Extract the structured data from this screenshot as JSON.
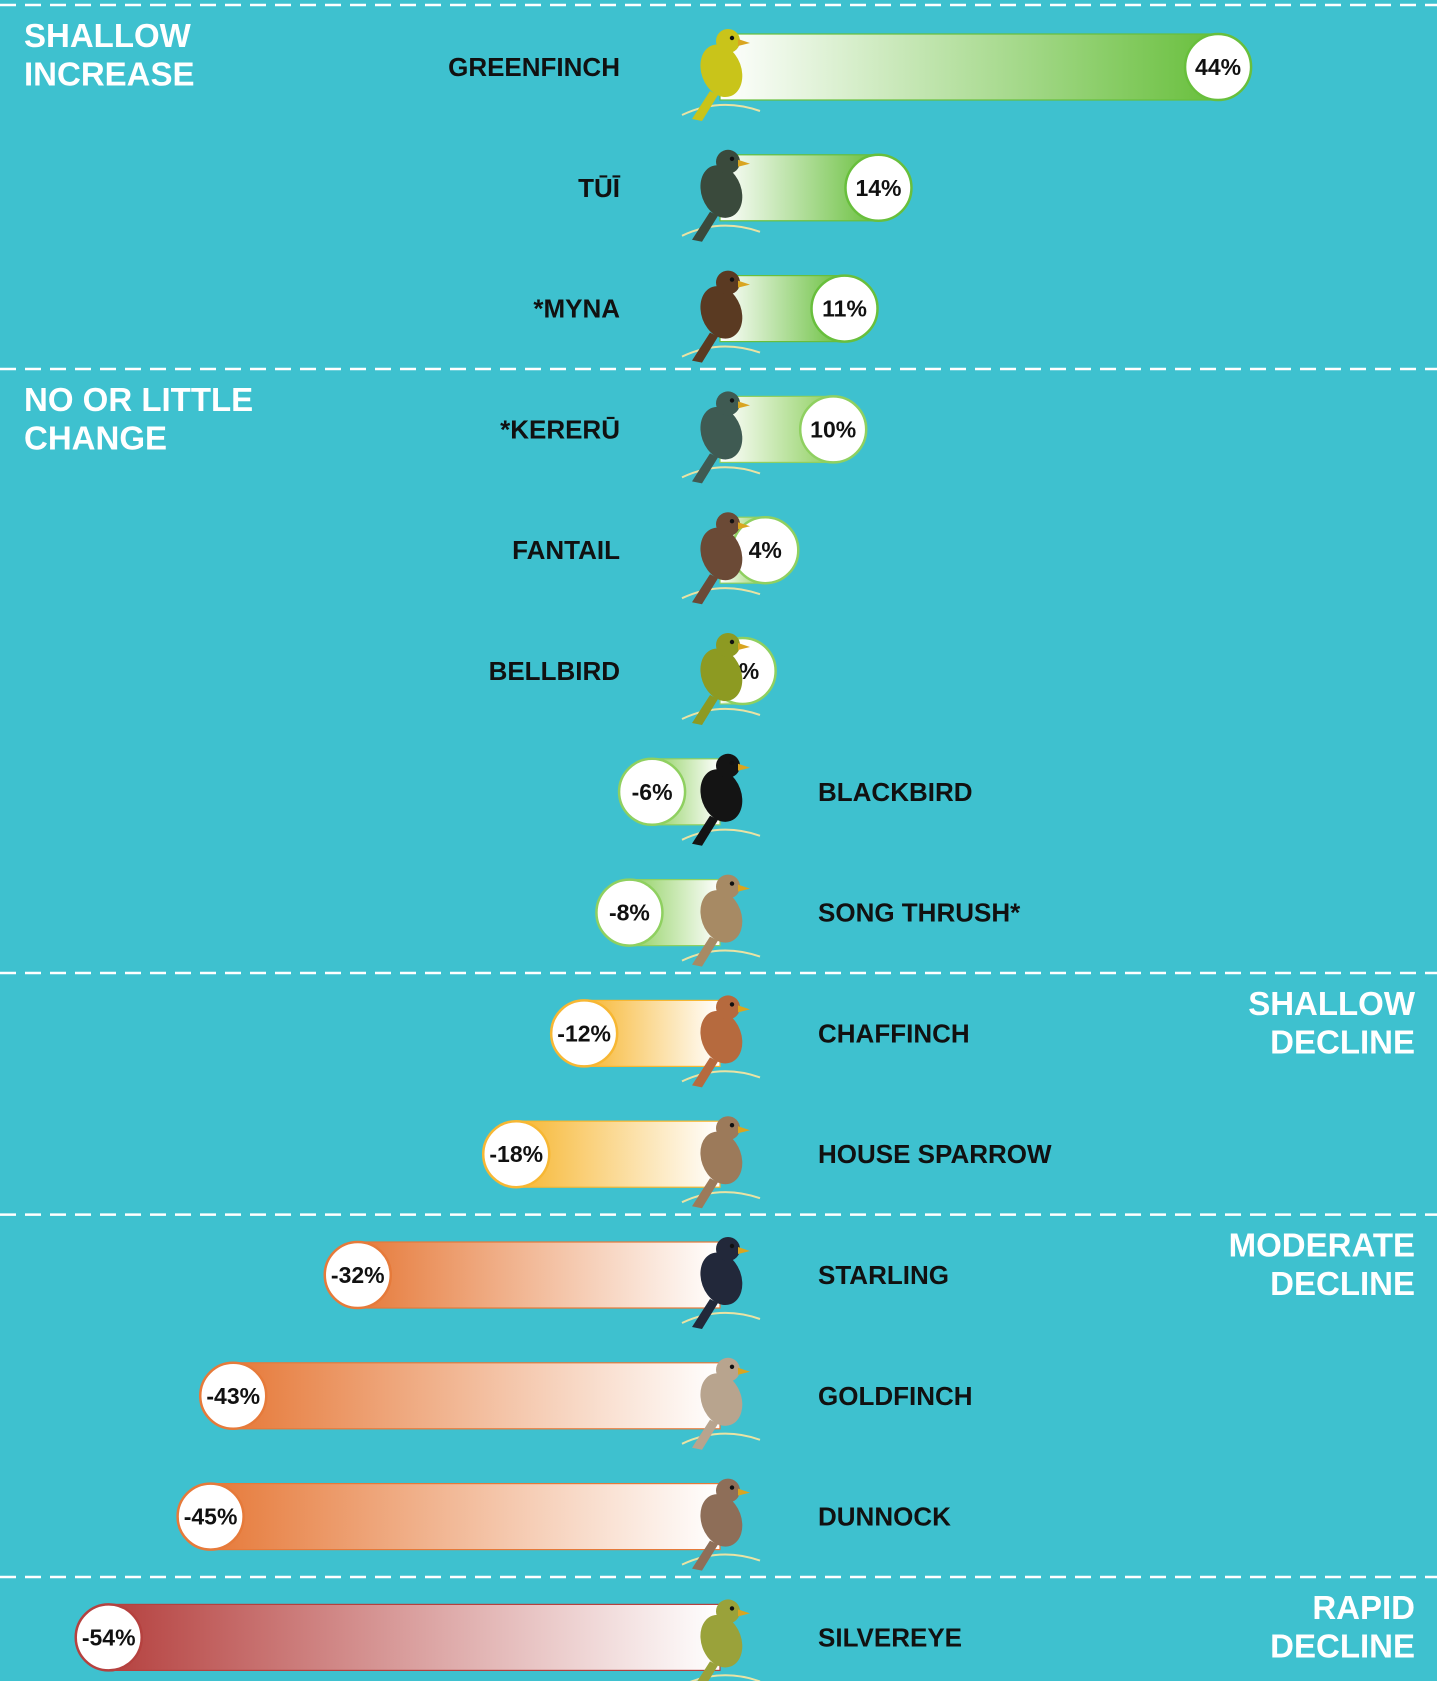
{
  "chart_data": {
    "type": "bar",
    "orientation": "horizontal",
    "groups": [
      {
        "name_lines": [
          "SHALLOW",
          "INCREASE"
        ],
        "side": "left",
        "color": "#68bf3c"
      },
      {
        "name_lines": [
          "NO OR LITTLE",
          "CHANGE"
        ],
        "side": "left",
        "color": "#8fd060"
      },
      {
        "name_lines": [
          "SHALLOW",
          "DECLINE"
        ],
        "side": "right",
        "color": "#f7b733"
      },
      {
        "name_lines": [
          "MODERATE",
          "DECLINE"
        ],
        "side": "right",
        "color": "#e67a3a"
      },
      {
        "name_lines": [
          "RAPID",
          "DECLINE"
        ],
        "side": "right",
        "color": "#b5413f"
      }
    ],
    "categories": [
      "GREENFINCH",
      "TŪĪ",
      "*MYNA",
      "*KERERŪ",
      "FANTAIL",
      "BELLBIRD",
      "BLACKBIRD",
      "SONG THRUSH*",
      "CHAFFINCH",
      "HOUSE SPARROW",
      "STARLING",
      "GOLDFINCH",
      "DUNNOCK",
      "SILVEREYE"
    ],
    "values": [
      44,
      14,
      11,
      10,
      4,
      2,
      -6,
      -8,
      -12,
      -18,
      -32,
      -43,
      -45,
      -54
    ],
    "value_labels": [
      "44%",
      "14%",
      "11%",
      "10%",
      "4%",
      "2%",
      "-6%",
      "-8%",
      "-12%",
      "-18%",
      "-32%",
      "-43%",
      "-45%",
      "-54%"
    ],
    "group_index": [
      0,
      0,
      0,
      1,
      1,
      1,
      1,
      1,
      2,
      2,
      3,
      3,
      3,
      4
    ],
    "icons": [
      "greenfinch-icon",
      "tui-icon",
      "myna-icon",
      "kereru-icon",
      "fantail-icon",
      "bellbird-icon",
      "blackbird-icon",
      "song-thrush-icon",
      "chaffinch-icon",
      "house-sparrow-icon",
      "starling-icon",
      "goldfinch-icon",
      "dunnock-icon",
      "silvereye-icon"
    ],
    "bird_colors": [
      "#c9c41a",
      "#3a4a3c",
      "#5a3a22",
      "#3f5a52",
      "#6b4a36",
      "#8d9a22",
      "#141414",
      "#a78a64",
      "#b66a3e",
      "#9c7a5a",
      "#22283a",
      "#b8a48e",
      "#8e6e58",
      "#9aa23a"
    ],
    "background_color": "#3ec1cf",
    "label_side": "opposite-of-bar",
    "grid": false
  }
}
